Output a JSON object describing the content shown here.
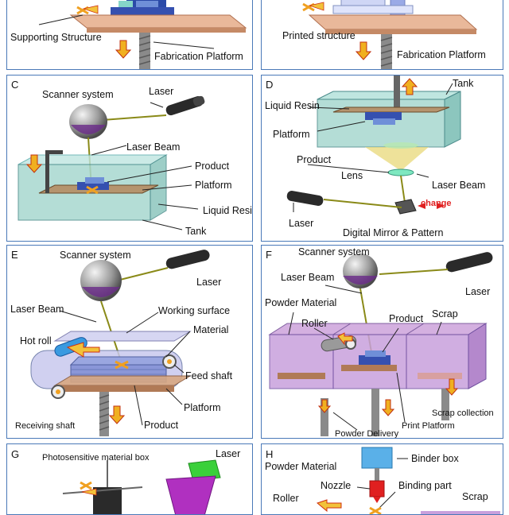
{
  "panels": {
    "a": {
      "labels": {
        "support": "Supporting Structure",
        "platform": "Fabrication Platform"
      }
    },
    "b": {
      "labels": {
        "printed": "Printed structure",
        "platform": "Fabrication Platform"
      }
    },
    "c": {
      "letter": "C",
      "labels": {
        "scanner": "Scanner system",
        "laser": "Laser",
        "beam": "Laser Beam",
        "product": "Product",
        "platform": "Platform",
        "resin": "Liquid Resin",
        "tank": "Tank"
      }
    },
    "d": {
      "letter": "D",
      "labels": {
        "tank": "Tank",
        "resin": "Liquid Resin",
        "platform": "Platform",
        "product": "Product",
        "lens": "Lens",
        "beam": "Laser Beam",
        "laser": "Laser",
        "change": "change",
        "mirror": "Digital Mirror & Pattern"
      }
    },
    "e": {
      "letter": "E",
      "labels": {
        "scanner": "Scanner system",
        "laser": "Laser",
        "beam": "Laser Beam",
        "working": "Working surface",
        "material": "Material",
        "hotroll": "Hot roll",
        "feed": "Feed shaft",
        "receiving": "Receiving shaft",
        "platform": "Platform",
        "product": "Product"
      }
    },
    "f": {
      "letter": "F",
      "labels": {
        "scanner": "Scanner system",
        "beam": "Laser Beam",
        "laser": "Laser",
        "powder": "Powder Material",
        "roller": "Roller",
        "product": "Product",
        "scrap": "Scrap",
        "scrapcol": "Scrap collection",
        "print": "Print Platform",
        "delivery": "Powder Delivery"
      }
    },
    "g": {
      "letter": "G",
      "labels": {
        "box": "Photosensitive material box",
        "laser": "Laser"
      }
    },
    "h": {
      "letter": "H",
      "labels": {
        "binder": "Binder box",
        "powder": "Powder Material",
        "nozzle": "Nozzle",
        "binding": "Binding part",
        "roller": "Roller",
        "scrap": "Scrap"
      }
    }
  }
}
